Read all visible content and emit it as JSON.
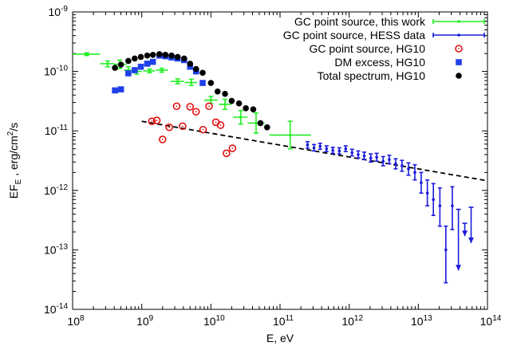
{
  "chart_data": {
    "type": "scatter",
    "title": "",
    "xlabel": "E, eV",
    "ylabel": "EF_E , erg/cm^2/s",
    "xscale": "log",
    "yscale": "log",
    "xlim": [
      100000000.0,
      100000000000000.0
    ],
    "ylim": [
      1e-14,
      1e-09
    ],
    "legend_position": "top-right",
    "x_tick_labels": [
      {
        "base": "10",
        "exp": "8"
      },
      {
        "base": "10",
        "exp": "9"
      },
      {
        "base": "10",
        "exp": "10"
      },
      {
        "base": "10",
        "exp": "11"
      },
      {
        "base": "10",
        "exp": "12"
      },
      {
        "base": "10",
        "exp": "13"
      },
      {
        "base": "10",
        "exp": "14"
      }
    ],
    "y_tick_labels": [
      {
        "base": "10",
        "exp": "-14"
      },
      {
        "base": "10",
        "exp": "-13"
      },
      {
        "base": "10",
        "exp": "-12"
      },
      {
        "base": "10",
        "exp": "-11"
      },
      {
        "base": "10",
        "exp": "-10"
      },
      {
        "base": "10",
        "exp": "-9"
      }
    ],
    "series": [
      {
        "name": "GC point source, this work",
        "color": "#22ee22",
        "marker": "errorbar-cross",
        "points": [
          {
            "x": 160000000.0,
            "y": 1.95e-10,
            "xlo": 100000000.0,
            "xhi": 250000000.0,
            "ylo": 1.85e-10,
            "yhi": 2.05e-10
          },
          {
            "x": 320000000.0,
            "y": 1.35e-10,
            "xlo": 250000000.0,
            "xhi": 400000000.0,
            "ylo": 1.2e-10,
            "yhi": 1.5e-10
          },
          {
            "x": 480000000.0,
            "y": 1.32e-10,
            "xlo": 400000000.0,
            "xhi": 600000000.0,
            "ylo": 1.12e-10,
            "yhi": 1.55e-10
          },
          {
            "x": 640000000.0,
            "y": 1.05e-10,
            "xlo": 550000000.0,
            "xhi": 750000000.0,
            "ylo": 9.2e-11,
            "yhi": 1.2e-10
          },
          {
            "x": 850000000.0,
            "y": 1e-10,
            "xlo": 750000000.0,
            "xhi": 1000000000.0,
            "ylo": 9e-11,
            "yhi": 1.1e-10
          },
          {
            "x": 1300000000.0,
            "y": 1.02e-10,
            "xlo": 1050000000.0,
            "xhi": 1550000000.0,
            "ylo": 9.5e-11,
            "yhi": 1.1e-10
          },
          {
            "x": 1950000000.0,
            "y": 1.05e-10,
            "xlo": 1600000000.0,
            "xhi": 2400000000.0,
            "ylo": 9.7e-11,
            "yhi": 1.13e-10
          },
          {
            "x": 3300000000.0,
            "y": 6.8e-11,
            "xlo": 2600000000.0,
            "xhi": 4100000000.0,
            "ylo": 6.2e-11,
            "yhi": 7.5e-11
          },
          {
            "x": 5200000000.0,
            "y": 6.5e-11,
            "xlo": 4200000000.0,
            "xhi": 6300000000.0,
            "ylo": 5.8e-11,
            "yhi": 7.4e-11
          },
          {
            "x": 10000000000.0,
            "y": 3.3e-11,
            "xlo": 8000000000.0,
            "xhi": 12500000000.0,
            "ylo": 2.9e-11,
            "yhi": 3.8e-11
          },
          {
            "x": 16000000000.0,
            "y": 2.8e-11,
            "xlo": 13000000000.0,
            "xhi": 20000000000.0,
            "ylo": 2.3e-11,
            "yhi": 3.4e-11
          },
          {
            "x": 27000000000.0,
            "y": 1.7e-11,
            "xlo": 21000000000.0,
            "xhi": 34000000000.0,
            "ylo": 1.3e-11,
            "yhi": 2.2e-11
          },
          {
            "x": 45000000000.0,
            "y": 1.35e-11,
            "xlo": 34000000000.0,
            "xhi": 60000000000.0,
            "ylo": 9.2e-12,
            "yhi": 2e-11
          },
          {
            "x": 140000000000.0,
            "y": 8.5e-12,
            "xlo": 70000000000.0,
            "xhi": 280000000000.0,
            "ylo": 5e-12,
            "yhi": 1.45e-11
          }
        ]
      },
      {
        "name": "GC point source, HESS data",
        "color": "#1a1adc",
        "marker": "errorbar-point",
        "points": [
          {
            "x": 250000000000.0,
            "y": 5.8e-12,
            "ylo": 5.1e-12,
            "yhi": 6.6e-12
          },
          {
            "x": 310000000000.0,
            "y": 5.2e-12,
            "ylo": 4.6e-12,
            "yhi": 5.9e-12
          },
          {
            "x": 380000000000.0,
            "y": 5.5e-12,
            "ylo": 4.9e-12,
            "yhi": 6.2e-12
          },
          {
            "x": 470000000000.0,
            "y": 5e-12,
            "ylo": 4.5e-12,
            "yhi": 5.6e-12
          },
          {
            "x": 580000000000.0,
            "y": 4.7e-12,
            "ylo": 4.2e-12,
            "yhi": 5.3e-12
          },
          {
            "x": 720000000000.0,
            "y": 4.6e-12,
            "ylo": 4.1e-12,
            "yhi": 5.2e-12
          },
          {
            "x": 890000000000.0,
            "y": 5e-12,
            "ylo": 4.5e-12,
            "yhi": 5.6e-12
          },
          {
            "x": 1100000000000.0,
            "y": 4.3e-12,
            "ylo": 3.8e-12,
            "yhi": 4.9e-12
          },
          {
            "x": 1350000000000.0,
            "y": 4e-12,
            "ylo": 3.5e-12,
            "yhi": 4.6e-12
          },
          {
            "x": 1650000000000.0,
            "y": 3.8e-12,
            "ylo": 3.3e-12,
            "yhi": 4.4e-12
          },
          {
            "x": 2050000000000.0,
            "y": 3.5e-12,
            "ylo": 3e-12,
            "yhi": 4.1e-12
          },
          {
            "x": 2500000000000.0,
            "y": 3.6e-12,
            "ylo": 3.1e-12,
            "yhi": 4.2e-12
          },
          {
            "x": 3100000000000.0,
            "y": 3.1e-12,
            "ylo": 2.6e-12,
            "yhi": 3.7e-12
          },
          {
            "x": 3800000000000.0,
            "y": 3.3e-12,
            "ylo": 2.8e-12,
            "yhi": 3.9e-12
          },
          {
            "x": 4700000000000.0,
            "y": 2.8e-12,
            "ylo": 2.3e-12,
            "yhi": 3.4e-12
          },
          {
            "x": 5800000000000.0,
            "y": 2.6e-12,
            "ylo": 2.1e-12,
            "yhi": 3.2e-12
          },
          {
            "x": 7200000000000.0,
            "y": 2.3e-12,
            "ylo": 1.8e-12,
            "yhi": 2.9e-12
          },
          {
            "x": 8900000000000.0,
            "y": 2e-12,
            "ylo": 1.5e-12,
            "yhi": 2.7e-12
          },
          {
            "x": 11000000000000.0,
            "y": 1.35e-12,
            "ylo": 9e-13,
            "yhi": 2e-12
          },
          {
            "x": 13500000000000.0,
            "y": 9e-13,
            "ylo": 5.5e-13,
            "yhi": 1.5e-12
          },
          {
            "x": 16500000000000.0,
            "y": 7e-13,
            "ylo": 3.8e-13,
            "yhi": 1.3e-12
          },
          {
            "x": 20500000000000.0,
            "y": 5.5e-13,
            "ylo": 2.5e-13,
            "yhi": 1.1e-12
          },
          {
            "x": 25000000000000.0,
            "y": 1e-13,
            "ylo": 2.8e-14,
            "yhi": 2.5e-13
          },
          {
            "x": 31000000000000.0,
            "y": 5.5e-13,
            "ylo": 2.2e-13,
            "yhi": 1.15e-12
          },
          {
            "x": 38000000000000.0,
            "y": 2.2e-13,
            "ylo": 4.5e-14,
            "yhi": 4.8e-13,
            "upper_limit": true
          },
          {
            "x": 47000000000000.0,
            "y": 1.2e-13,
            "ylo": 1.7e-13,
            "yhi": 2.8e-13,
            "upper_limit": true
          },
          {
            "x": 58000000000000.0,
            "y": 3e-13,
            "ylo": 1.3e-13,
            "yhi": 5.2e-13,
            "upper_limit": true
          }
        ]
      },
      {
        "name": "GC point source, HG10",
        "color": "#e01010",
        "marker": "circle-dot",
        "points": [
          {
            "x": 1400000000.0,
            "y": 1.45e-11
          },
          {
            "x": 1650000000.0,
            "y": 1.5e-11
          },
          {
            "x": 2000000000.0,
            "y": 7.2e-12
          },
          {
            "x": 2500000000.0,
            "y": 1.15e-11
          },
          {
            "x": 3200000000.0,
            "y": 2.6e-11
          },
          {
            "x": 3900000000.0,
            "y": 1.2e-11
          },
          {
            "x": 5000000000.0,
            "y": 2.55e-11
          },
          {
            "x": 6100000000.0,
            "y": 2.1e-11
          },
          {
            "x": 7700000000.0,
            "y": 1.05e-11
          },
          {
            "x": 9400000000.0,
            "y": 2.6e-11
          },
          {
            "x": 11800000000.0,
            "y": 1.4e-11
          },
          {
            "x": 13800000000.0,
            "y": 1.25e-11
          },
          {
            "x": 16800000000.0,
            "y": 4.2e-12
          },
          {
            "x": 20500000000.0,
            "y": 5.1e-12
          }
        ]
      },
      {
        "name": "DM excess, HG10",
        "color": "#1f3fe8",
        "marker": "square",
        "points": [
          {
            "x": 410000000.0,
            "y": 4.8e-11
          },
          {
            "x": 500000000.0,
            "y": 5e-11
          },
          {
            "x": 640000000.0,
            "y": 9.3e-11
          },
          {
            "x": 790000000.0,
            "y": 1.05e-10
          },
          {
            "x": 970000000.0,
            "y": 1.2e-10
          },
          {
            "x": 1200000000.0,
            "y": 1.35e-10
          },
          {
            "x": 1450000000.0,
            "y": 1.45e-10
          },
          {
            "x": 1800000000.0,
            "y": 1.85e-10
          },
          {
            "x": 2200000000.0,
            "y": 1.8e-10
          },
          {
            "x": 2700000000.0,
            "y": 1.72e-10
          },
          {
            "x": 3300000000.0,
            "y": 1.65e-10
          },
          {
            "x": 4100000000.0,
            "y": 1.55e-10
          },
          {
            "x": 5000000000.0,
            "y": 1.2e-10
          },
          {
            "x": 6100000000.0,
            "y": 1e-10
          },
          {
            "x": 7600000000.0,
            "y": 6.4e-11
          }
        ]
      },
      {
        "name": "Total spectrum, HG10",
        "color": "#000000",
        "marker": "filled-circle",
        "points": [
          {
            "x": 410000000.0,
            "y": 1.15e-10
          },
          {
            "x": 500000000.0,
            "y": 1.3e-10
          },
          {
            "x": 640000000.0,
            "y": 1.5e-10
          },
          {
            "x": 790000000.0,
            "y": 1.65e-10
          },
          {
            "x": 970000000.0,
            "y": 1.75e-10
          },
          {
            "x": 1200000000.0,
            "y": 1.85e-10
          },
          {
            "x": 1450000000.0,
            "y": 1.9e-10
          },
          {
            "x": 1800000000.0,
            "y": 1.95e-10
          },
          {
            "x": 2200000000.0,
            "y": 1.9e-10
          },
          {
            "x": 2700000000.0,
            "y": 1.85e-10
          },
          {
            "x": 3300000000.0,
            "y": 1.75e-10
          },
          {
            "x": 4100000000.0,
            "y": 1.65e-10
          },
          {
            "x": 5000000000.0,
            "y": 1.35e-10
          },
          {
            "x": 6100000000.0,
            "y": 1.1e-10
          },
          {
            "x": 7600000000.0,
            "y": 9.5e-11
          },
          {
            "x": 10000000000.0,
            "y": 6.4e-11
          },
          {
            "x": 12500000000.0,
            "y": 4.6e-11
          },
          {
            "x": 16000000000.0,
            "y": 4.2e-11
          },
          {
            "x": 20000000000.0,
            "y": 3.2e-11
          },
          {
            "x": 25500000000.0,
            "y": 2.9e-11
          },
          {
            "x": 32000000000.0,
            "y": 2.4e-11
          },
          {
            "x": 41000000000.0,
            "y": 2.3e-11
          },
          {
            "x": 52000000000.0,
            "y": 1.35e-11
          },
          {
            "x": 65000000000.0,
            "y": 1.15e-11
          }
        ]
      },
      {
        "marker": "dashed-line",
        "color": "#000000",
        "points": [
          {
            "x": 1000000000.0,
            "y": 1.45e-11
          },
          {
            "x": 100000000000000.0,
            "y": 1.45e-12
          }
        ]
      }
    ]
  }
}
